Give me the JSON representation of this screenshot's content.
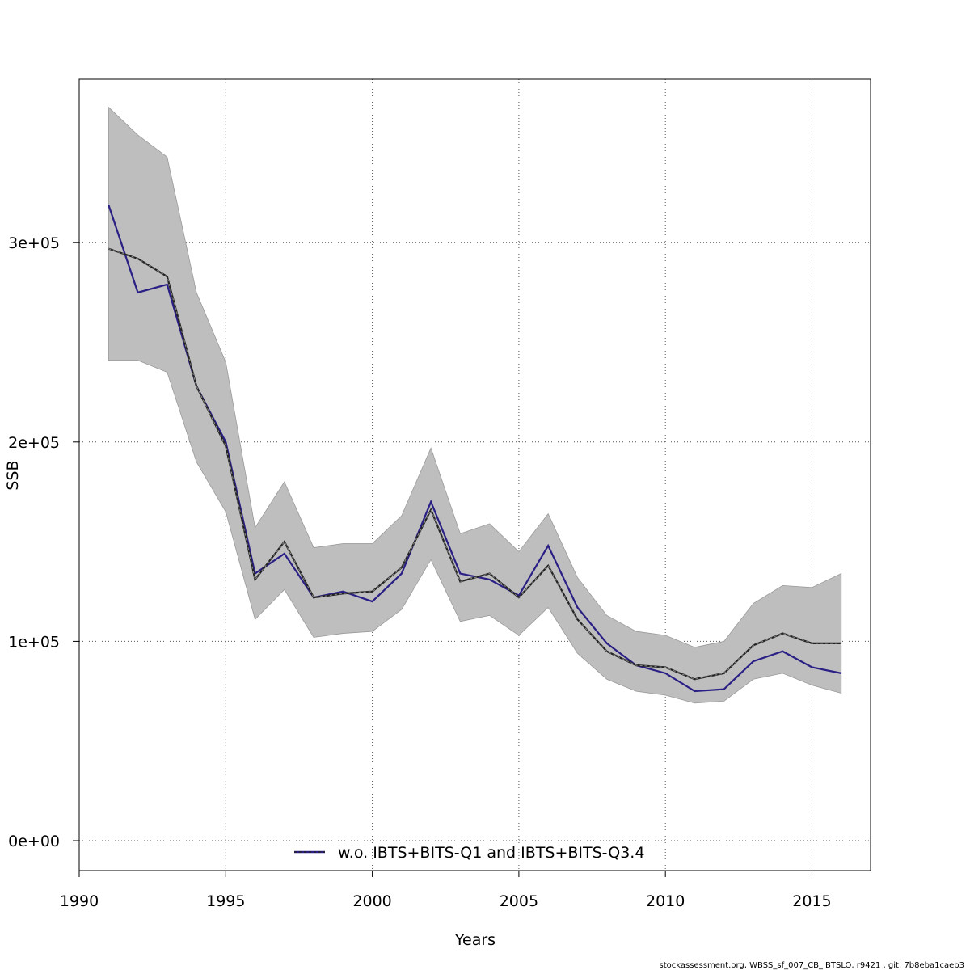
{
  "chart_data": {
    "type": "line",
    "xlabel": "Years",
    "ylabel": "SSB",
    "xlim": [
      1990,
      2017
    ],
    "ylim": [
      -15000,
      382000
    ],
    "x_ticks": [
      1990,
      1995,
      2000,
      2005,
      2010,
      2015
    ],
    "x_tick_labels": [
      "1990",
      "1995",
      "2000",
      "2005",
      "2010",
      "2015"
    ],
    "y_ticks": [
      0,
      100000,
      200000,
      300000
    ],
    "y_tick_labels": [
      "0e+00",
      "1e+05",
      "2e+05",
      "3e+05"
    ],
    "grid": true,
    "legend_position": "bottom",
    "x": [
      1991,
      1992,
      1993,
      1994,
      1995,
      1996,
      1997,
      1998,
      1999,
      2000,
      2001,
      2002,
      2003,
      2004,
      2005,
      2006,
      2007,
      2008,
      2009,
      2010,
      2011,
      2012,
      2013,
      2014,
      2015,
      2016
    ],
    "band": {
      "color": "#bebebe",
      "upper": [
        368000,
        354000,
        343000,
        275000,
        240000,
        157000,
        180000,
        147000,
        149000,
        149000,
        163000,
        197000,
        154000,
        159000,
        145000,
        164000,
        132000,
        113000,
        105000,
        103000,
        97000,
        100000,
        119000,
        128000,
        127000,
        134000
      ],
      "lower": [
        241000,
        241000,
        235000,
        190000,
        165000,
        111000,
        126000,
        102000,
        104000,
        105000,
        116000,
        141000,
        110000,
        113000,
        103000,
        117000,
        94000,
        81000,
        75000,
        73000,
        69000,
        70000,
        81000,
        84000,
        78000,
        74000
      ]
    },
    "series": [
      {
        "name": "w.o. IBTS+BITS-Q1 and IBTS+BITS-Q3.4",
        "color": "#2a1f85",
        "values": [
          319000,
          275000,
          279000,
          228000,
          200000,
          134000,
          144000,
          122000,
          125000,
          120000,
          134000,
          170000,
          134000,
          131000,
          123000,
          148000,
          117000,
          99000,
          88000,
          84000,
          75000,
          76000,
          90000,
          95000,
          87000,
          84000
        ]
      },
      {
        "color": "#222222",
        "dashed": true,
        "values": [
          297000,
          292000,
          283000,
          228000,
          198000,
          131000,
          150000,
          122000,
          124000,
          125000,
          137000,
          166000,
          130000,
          134000,
          122000,
          138000,
          111000,
          95000,
          88000,
          87000,
          81000,
          84000,
          98000,
          104000,
          99000,
          99000
        ]
      }
    ]
  },
  "footer": {
    "text": "stockassessment.org, WBSS_sf_007_CB_IBTSLO, r9421 , git: 7b8eba1caeb3"
  }
}
